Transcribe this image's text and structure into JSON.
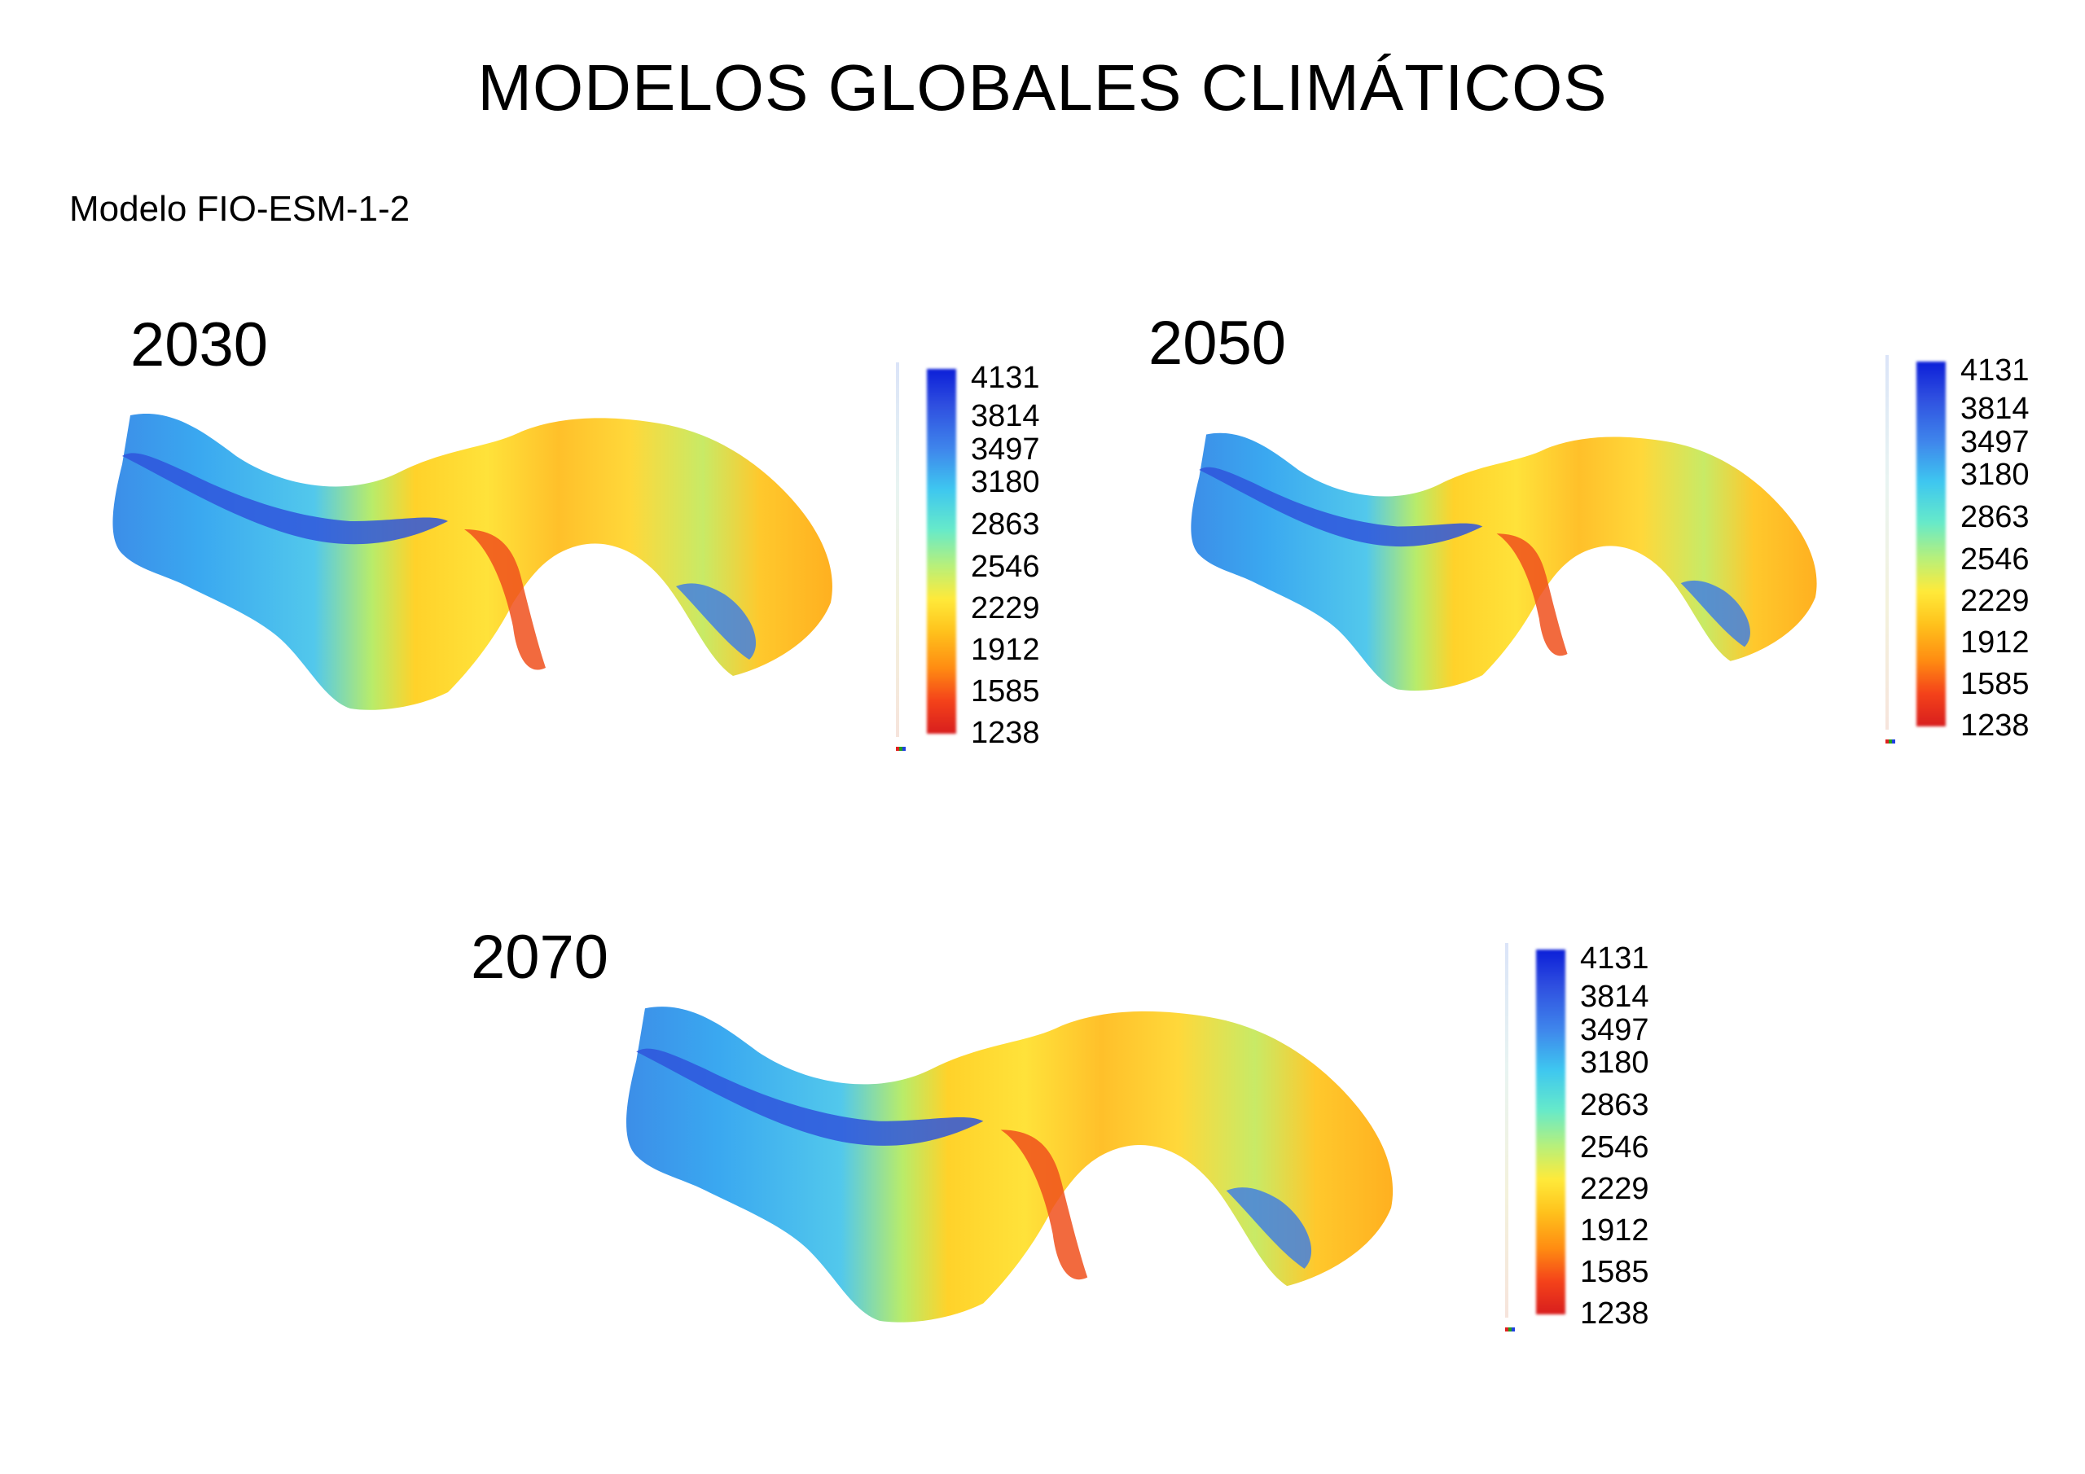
{
  "title": "MODELOS GLOBALES CLIMÁTICOS",
  "subtitle": "Modelo FIO-ESM-1-2",
  "colors": {
    "high": "#0c1fd8",
    "mid": "#66eaca",
    "low": "#d81e1e"
  },
  "maps": [
    {
      "year": "2030",
      "legend": [
        "4131",
        "3814",
        "3497",
        "3180",
        "2863",
        "2546",
        "2229",
        "1912",
        "1585",
        "1238"
      ]
    },
    {
      "year": "2050",
      "legend": [
        "4131",
        "3814",
        "3497",
        "3180",
        "2863",
        "2546",
        "2229",
        "1912",
        "1585",
        "1238"
      ]
    },
    {
      "year": "2070",
      "legend": [
        "4131",
        "3814",
        "3497",
        "3180",
        "2863",
        "2546",
        "2229",
        "1912",
        "1585",
        "1238"
      ]
    }
  ]
}
